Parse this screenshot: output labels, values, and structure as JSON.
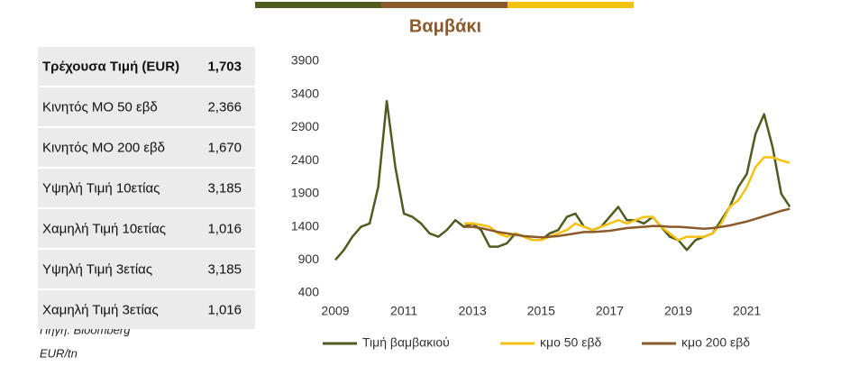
{
  "table": {
    "rows": [
      [
        "Τρέχουσα Τιμή (EUR)",
        "1,703"
      ],
      [
        "Κινητός ΜΟ 50 εβδ",
        "2,366"
      ],
      [
        "Κινητός ΜΟ 200 εβδ",
        "1,670"
      ],
      [
        "Υψηλή Τιμή 10ετίας",
        "3,185"
      ],
      [
        "Χαμηλή Τιμή 10ετίας",
        "1,016"
      ],
      [
        "Υψηλή Τιμή 3ετίας",
        "3,185"
      ],
      [
        "Χαμηλή Τιμή 3ετίας",
        "1,016"
      ]
    ]
  },
  "source": "Πηγή: Bloomberg",
  "unit": "EUR/tn",
  "chart_data": {
    "type": "line",
    "title": "Βαμβάκι",
    "x": [
      2009.0,
      2009.25,
      2009.5,
      2009.75,
      2010.0,
      2010.25,
      2010.5,
      2010.75,
      2011.0,
      2011.25,
      2011.5,
      2011.75,
      2012.0,
      2012.25,
      2012.5,
      2012.75,
      2013.0,
      2013.25,
      2013.5,
      2013.75,
      2014.0,
      2014.25,
      2014.5,
      2014.75,
      2015.0,
      2015.25,
      2015.5,
      2015.75,
      2016.0,
      2016.25,
      2016.5,
      2016.75,
      2017.0,
      2017.25,
      2017.5,
      2017.75,
      2018.0,
      2018.25,
      2018.5,
      2018.75,
      2019.0,
      2019.25,
      2019.5,
      2019.75,
      2020.0,
      2020.25,
      2020.5,
      2020.75,
      2021.0,
      2021.25,
      2021.5,
      2021.75,
      2022.0,
      2022.25
    ],
    "series": [
      {
        "name": "Τιμή βαμβακιού",
        "color": "#4f5b1f",
        "values": [
          900,
          1050,
          1250,
          1400,
          1450,
          2000,
          3300,
          2300,
          1600,
          1550,
          1450,
          1300,
          1250,
          1350,
          1500,
          1400,
          1450,
          1350,
          1100,
          1100,
          1150,
          1300,
          1250,
          1200,
          1200,
          1300,
          1350,
          1550,
          1600,
          1400,
          1350,
          1400,
          1550,
          1700,
          1500,
          1500,
          1450,
          1550,
          1400,
          1250,
          1200,
          1050,
          1200,
          1250,
          1300,
          1500,
          1700,
          2000,
          2200,
          2800,
          3100,
          2600,
          1900,
          1703
        ]
      },
      {
        "name": "κμο 50 εβδ",
        "color": "#f5c211",
        "values": [
          null,
          null,
          null,
          null,
          null,
          null,
          null,
          null,
          null,
          null,
          null,
          null,
          null,
          null,
          null,
          1450,
          1450,
          1430,
          1400,
          1300,
          1250,
          1300,
          1250,
          1200,
          1200,
          1250,
          1300,
          1350,
          1450,
          1400,
          1350,
          1400,
          1450,
          1500,
          1450,
          1500,
          1550,
          1550,
          1400,
          1300,
          1200,
          1250,
          1250,
          1250,
          1300,
          1450,
          1700,
          1800,
          2000,
          2300,
          2450,
          2450,
          2400,
          2366
        ]
      },
      {
        "name": "κμο 200 εβδ",
        "color": "#8b5a2b",
        "values": [
          null,
          null,
          null,
          null,
          null,
          null,
          null,
          null,
          null,
          null,
          null,
          null,
          null,
          null,
          null,
          1400,
          1400,
          1380,
          1350,
          1320,
          1300,
          1280,
          1260,
          1250,
          1240,
          1250,
          1260,
          1280,
          1300,
          1320,
          1320,
          1330,
          1340,
          1360,
          1380,
          1390,
          1400,
          1410,
          1410,
          1400,
          1400,
          1390,
          1380,
          1370,
          1380,
          1400,
          1420,
          1450,
          1480,
          1520,
          1560,
          1600,
          1640,
          1670
        ]
      }
    ],
    "xlim": [
      2009,
      2022.35
    ],
    "xticks": [
      2009,
      2011,
      2013,
      2015,
      2017,
      2019,
      2021
    ],
    "ylim": [
      400,
      3900
    ],
    "yticks": [
      400,
      900,
      1400,
      1900,
      2400,
      2900,
      3400,
      3900
    ],
    "grid": false,
    "legend": "bottom"
  }
}
